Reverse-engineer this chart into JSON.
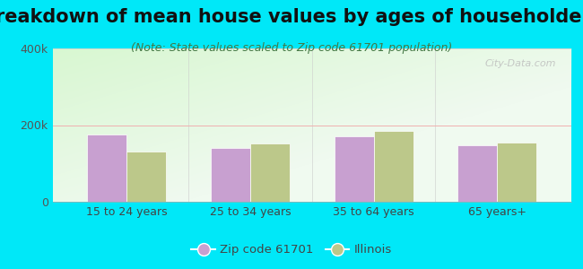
{
  "title": "Breakdown of mean house values by ages of householders",
  "subtitle": "(Note: State values scaled to Zip code 61701 population)",
  "categories": [
    "15 to 24 years",
    "25 to 34 years",
    "35 to 64 years",
    "65 years+"
  ],
  "zip_values": [
    175000,
    140000,
    170000,
    148000
  ],
  "state_values": [
    130000,
    152000,
    185000,
    155000
  ],
  "ylim": [
    0,
    400000
  ],
  "ytick_labels": [
    "0",
    "200k",
    "400k"
  ],
  "zip_color": "#c8a0d0",
  "state_color": "#bcc88a",
  "background_outer": "#00e8f8",
  "legend_zip_label": "Zip code 61701",
  "legend_state_label": "Illinois",
  "bar_width": 0.32,
  "title_fontsize": 15,
  "subtitle_fontsize": 9,
  "tick_fontsize": 9,
  "watermark": "City-Data.com"
}
